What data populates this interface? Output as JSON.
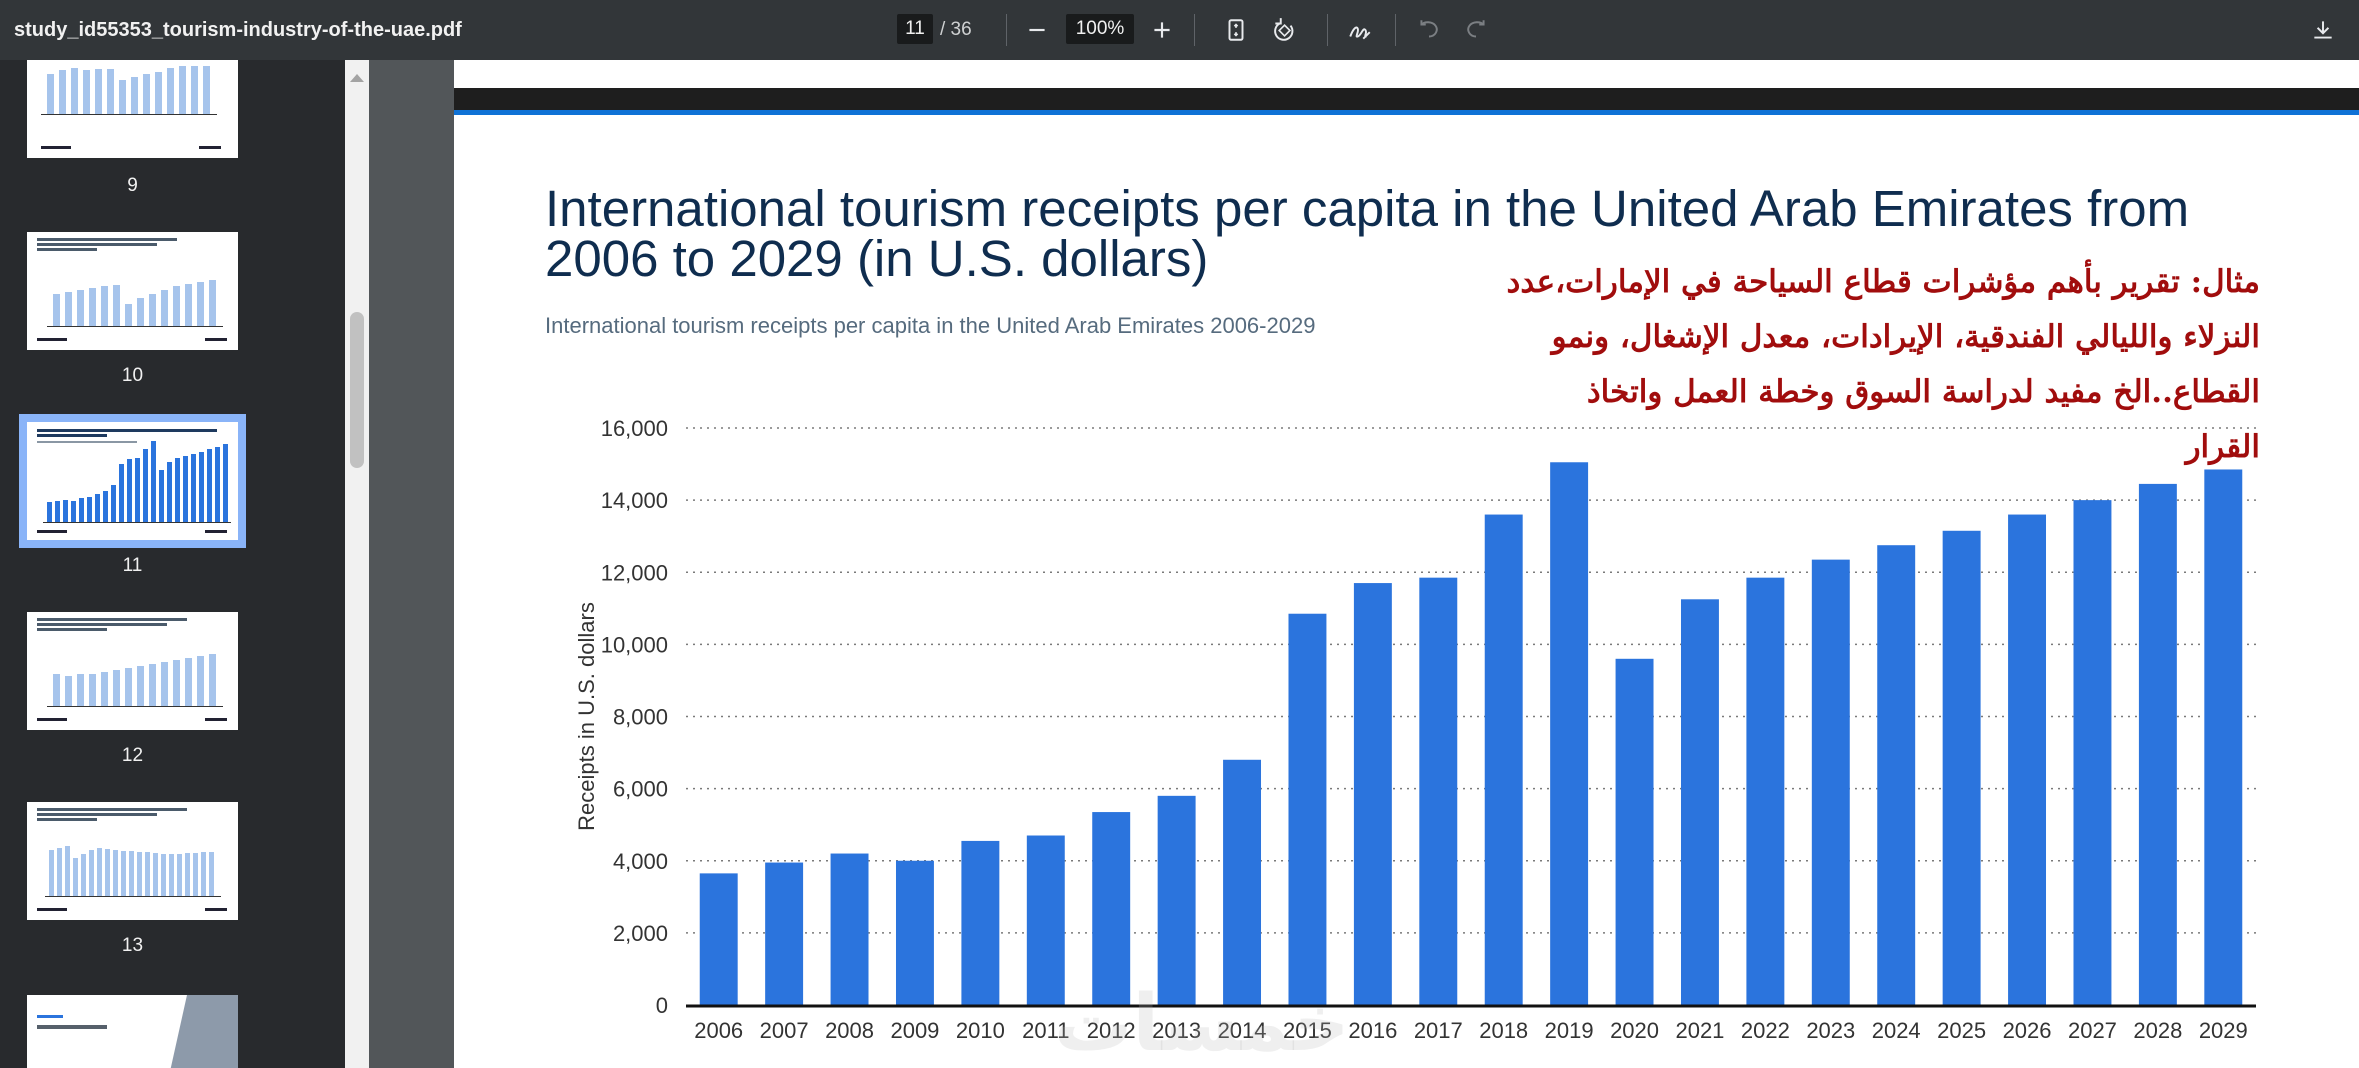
{
  "toolbar": {
    "file_name": "study_id55353_tourism-industry-of-the-uae.pdf",
    "current_page": "11",
    "total_pages": "/ 36",
    "zoom": "100%",
    "icons": [
      "minus-icon",
      "plus-icon",
      "fit-page-icon",
      "rotate-icon",
      "annotate-icon",
      "undo-icon",
      "redo-icon",
      "download-icon"
    ]
  },
  "sidebar": {
    "thumbnails": [
      {
        "label": "9"
      },
      {
        "label": "10"
      },
      {
        "label": "11",
        "active": true
      },
      {
        "label": "12"
      },
      {
        "label": "13"
      }
    ]
  },
  "page": {
    "title": "International tourism receipts per capita in the United Arab Emirates from 2006 to 2029 (in U.S. dollars)",
    "subtitle": "International tourism receipts per capita in the United Arab Emirates 2006-2029",
    "arabic_note": "مثال: تقرير بأهم مؤشرات قطاع السياحة في الإمارات،عدد النزلاء والليالي الفندقية، الإيرادات، معدل الإشغال، ونمو القطاع..الخ مفيد لدراسة السوق وخطة العمل واتخاذ القرار",
    "watermark": "خمسات"
  },
  "chart_data": {
    "type": "bar",
    "title": "International tourism receipts per capita in the United Arab Emirates from 2006 to 2029 (in U.S. dollars)",
    "ylabel": "Receipts in U.S. dollars",
    "xlabel": "",
    "ylim": [
      0,
      16000
    ],
    "yticks": [
      "0",
      "2,000",
      "4,000",
      "6,000",
      "8,000",
      "10,000",
      "12,000",
      "14,000",
      "16,000"
    ],
    "grid": true,
    "bar_color": "#2b74dd",
    "categories": [
      "2006",
      "2007",
      "2008",
      "2009",
      "2010",
      "2011",
      "2012",
      "2013",
      "2014",
      "2015",
      "2016",
      "2017",
      "2018",
      "2019",
      "2020",
      "2021",
      "2022",
      "2023",
      "2024",
      "2025",
      "2026",
      "2027",
      "2028",
      "2029"
    ],
    "values": [
      3650,
      3950,
      4200,
      4000,
      4550,
      4700,
      5350,
      5800,
      6800,
      10850,
      11700,
      11850,
      13600,
      15050,
      9600,
      11250,
      11850,
      12350,
      12750,
      13150,
      13600,
      14000,
      14450,
      14850
    ]
  }
}
